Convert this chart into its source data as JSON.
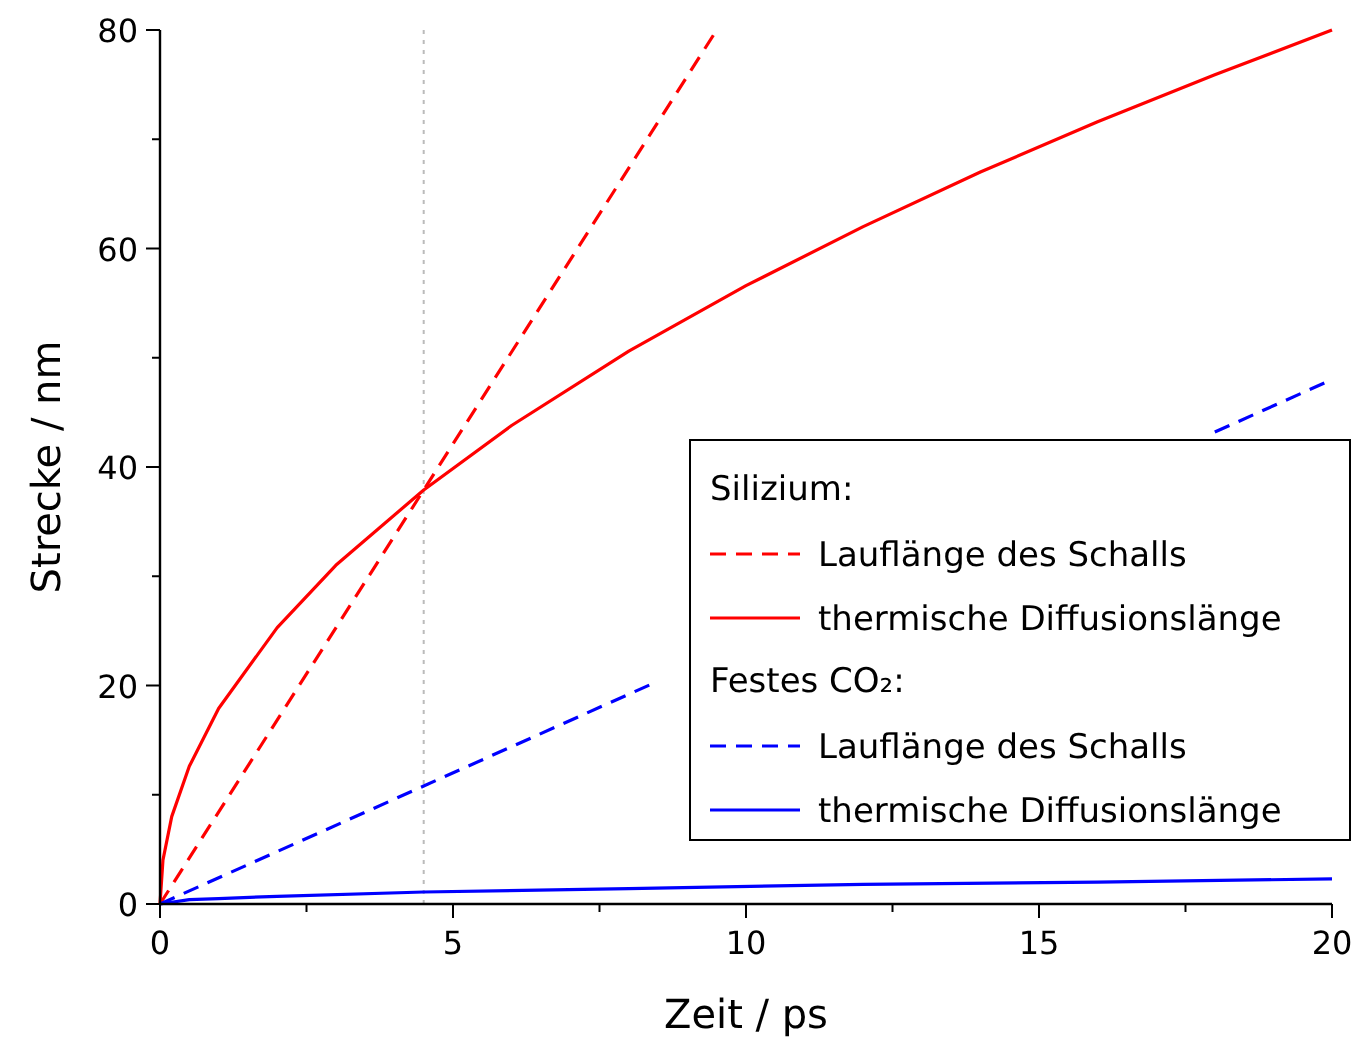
{
  "chart_data": {
    "type": "line",
    "xlabel": "Zeit / ps",
    "ylabel": "Strecke / nm",
    "xlim": [
      0,
      20
    ],
    "ylim": [
      0,
      80
    ],
    "xticks": [
      0,
      5,
      10,
      15,
      20
    ],
    "yticks": [
      0,
      20,
      40,
      60,
      80
    ],
    "grid": false,
    "legend": "right",
    "marker": "none",
    "annotations": [
      "Silizium:",
      "Festes CO₂:"
    ],
    "ref_lines": [
      {
        "axis": "x",
        "value": 4.5,
        "color": "#bbbbbb",
        "line_style": "dotted"
      }
    ],
    "series": [
      {
        "name": "Lauflänge des Schalls",
        "color": "#ff0000",
        "line_style": "dashed",
        "x": [
          0,
          4.5,
          9.5
        ],
        "values": [
          0,
          37.9,
          80
        ]
      },
      {
        "name": "thermische Diffusionslänge",
        "color": "#ff0000",
        "line_style": "solid",
        "x": [
          0,
          0.05,
          0.2,
          0.5,
          1,
          2,
          3,
          4.5,
          6,
          8,
          10,
          12,
          14,
          16,
          18,
          20
        ],
        "values": [
          0,
          4,
          8,
          12.6,
          17.9,
          25.3,
          31,
          37.9,
          43.8,
          50.6,
          56.6,
          62,
          67,
          71.6,
          75.9,
          80
        ]
      },
      {
        "name": "Lauflänge des Schalls",
        "color": "#0000ff",
        "line_style": "dashed",
        "x": [
          0,
          4.5,
          8.5,
          13,
          18,
          20
        ],
        "values": [
          0,
          10.8,
          20.4,
          null,
          43.2,
          48
        ]
      },
      {
        "name": "thermische Diffusionslänge",
        "color": "#0000ff",
        "line_style": "solid",
        "x": [
          0,
          0.5,
          1,
          2,
          4.5,
          8,
          12,
          16,
          20
        ],
        "values": [
          0,
          0.4,
          0.5,
          0.7,
          1.1,
          1.4,
          1.8,
          2,
          2.3
        ]
      }
    ]
  }
}
